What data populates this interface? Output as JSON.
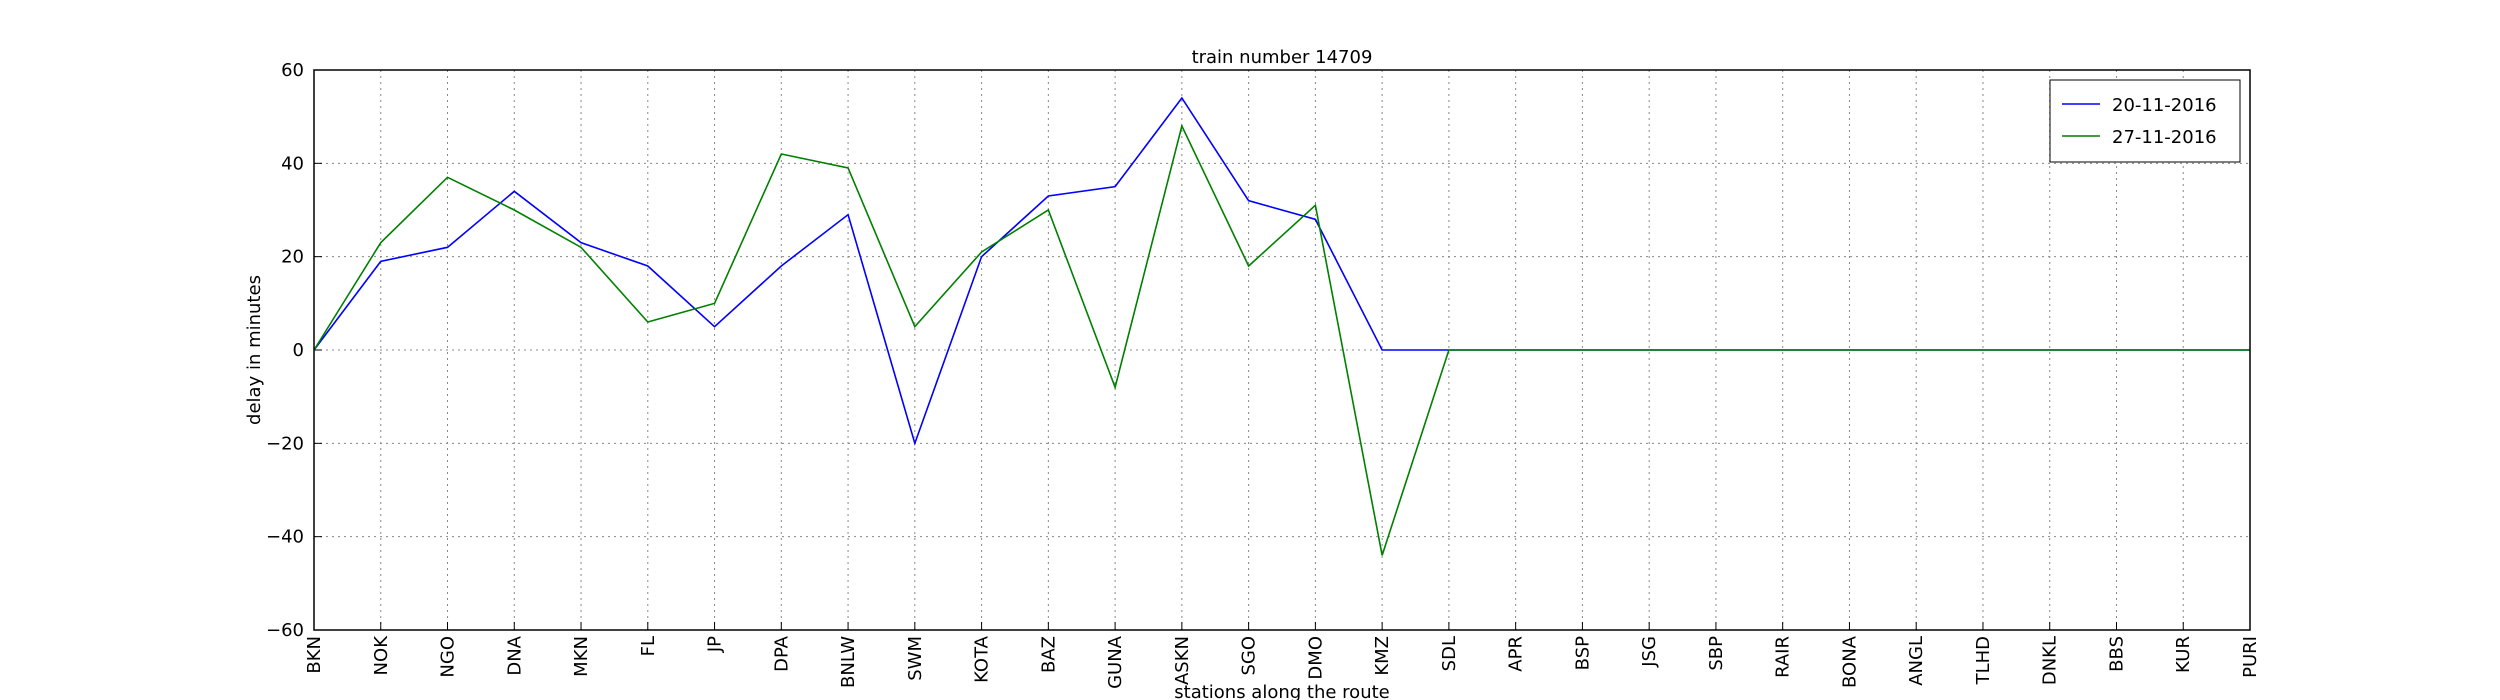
{
  "chart_data": {
    "type": "line",
    "title": "train number 14709",
    "x_label": "stations along the route",
    "y_label": "delay in minutes",
    "categories": [
      "BKN",
      "NOK",
      "NGO",
      "DNA",
      "MKN",
      "FL",
      "JP",
      "DPA",
      "BNLW",
      "SWM",
      "KOTA",
      "BAZ",
      "GUNA",
      "ASKN",
      "SGO",
      "DMO",
      "KMZ",
      "SDL",
      "APR",
      "BSP",
      "JSG",
      "SBP",
      "RAIR",
      "BONA",
      "ANGL",
      "TLHD",
      "DNKL",
      "BBS",
      "KUR",
      "PURI"
    ],
    "series": [
      {
        "name": "20-11-2016",
        "color": "#0000ff",
        "values": [
          0,
          19,
          22,
          34,
          23,
          18,
          5,
          18,
          29,
          -20,
          20,
          33,
          35,
          54,
          32,
          28,
          0,
          0,
          0,
          0,
          0,
          0,
          0,
          0,
          0,
          0,
          0,
          0,
          0,
          0
        ]
      },
      {
        "name": "27-11-2016",
        "color": "#008000",
        "values": [
          0,
          23,
          37,
          30,
          22,
          6,
          10,
          42,
          39,
          5,
          21,
          30,
          -8,
          48,
          18,
          31,
          -44,
          0,
          0,
          0,
          0,
          0,
          0,
          0,
          0,
          0,
          0,
          0,
          0,
          0
        ]
      }
    ],
    "ylim": [
      -60,
      60
    ],
    "yticks": [
      {
        "value": -60,
        "label": "−60"
      },
      {
        "value": -40,
        "label": "−40"
      },
      {
        "value": -20,
        "label": "−20"
      },
      0,
      20,
      40,
      60
    ],
    "grid": true,
    "legend": "upper right"
  }
}
